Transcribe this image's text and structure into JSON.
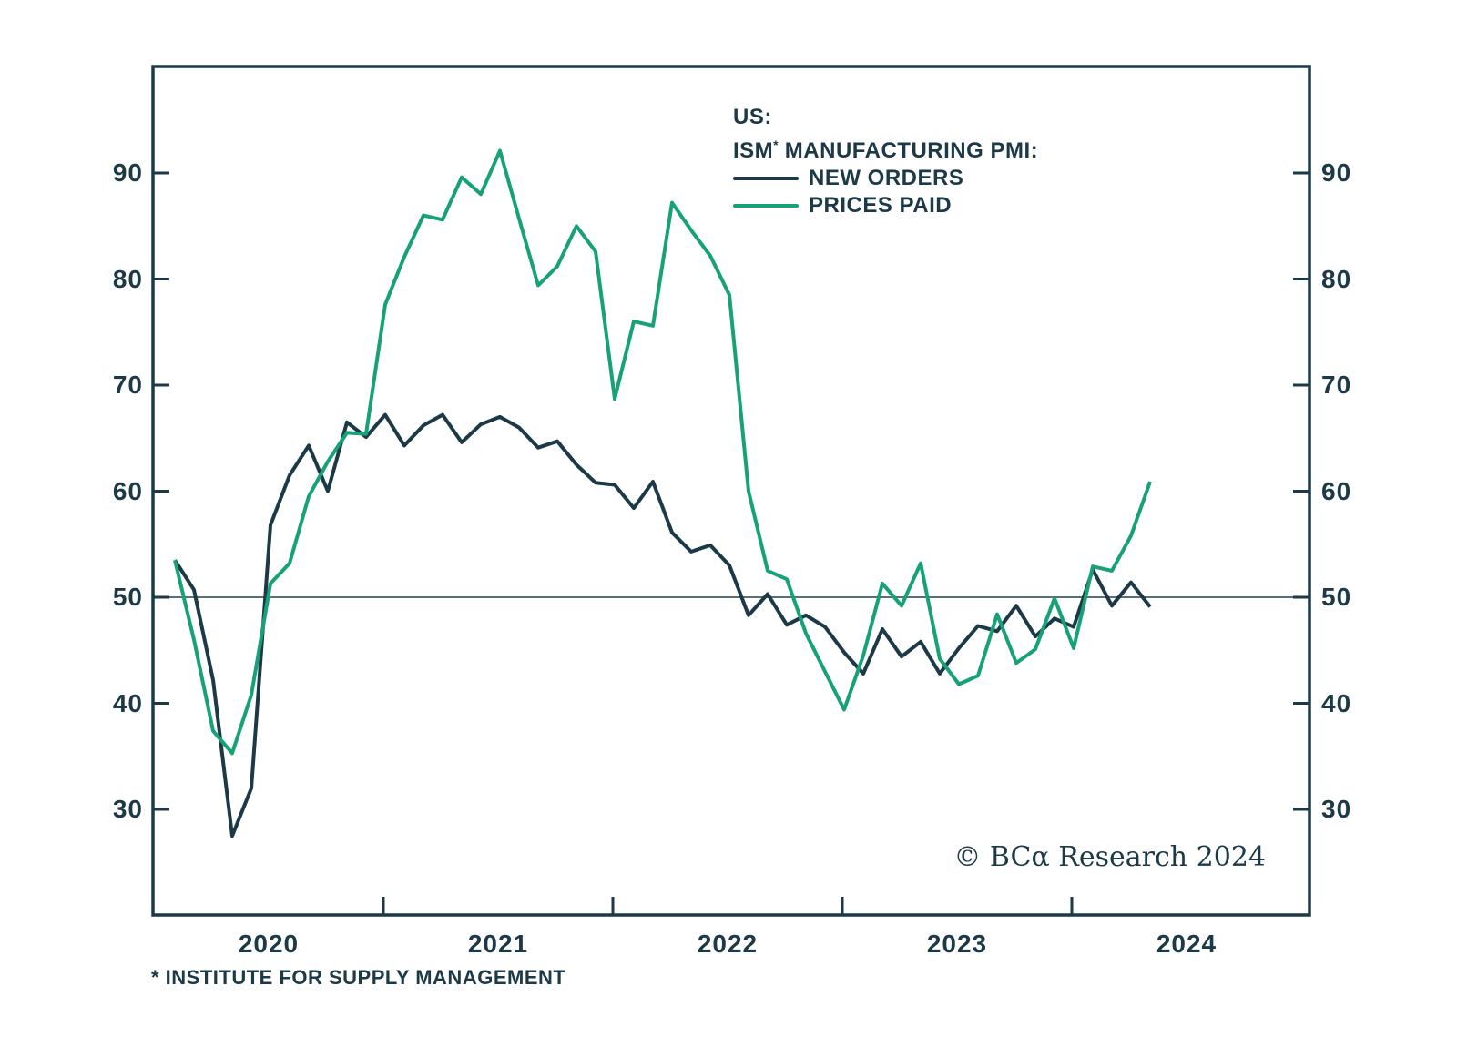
{
  "palette": {
    "ink": "#1b3947",
    "green": "#16a276",
    "ref_line": "#5a6e78",
    "background": "#ffffff"
  },
  "legend": {
    "region_label": "US:",
    "index_label_prefix": "ISM",
    "index_label_star": "*",
    "index_label_suffix": " MANUFACTURING PMI:"
  },
  "footnote": "* INSTITUTE FOR SUPPLY MANAGEMENT",
  "copyright": "© BCα Research 2024",
  "chart_data": {
    "type": "line",
    "title": "US: ISM* MANUFACTURING PMI",
    "x_frequency": "monthly",
    "x_start": "2020-01",
    "x_end": "2024-04",
    "x_year_labels": [
      "2020",
      "2021",
      "2022",
      "2023",
      "2024"
    ],
    "y_ticks": [
      90,
      80,
      70,
      60,
      50,
      40,
      30
    ],
    "ylim": [
      20,
      100
    ],
    "reference_line": 50,
    "grid": "off",
    "legend_position": "top-right-inside",
    "series": [
      {
        "name": "NEW ORDERS",
        "color": "#1b3947",
        "values": [
          53.5,
          50.7,
          42.2,
          27.5,
          32.0,
          56.8,
          61.5,
          64.3,
          60.0,
          66.5,
          65.1,
          67.2,
          64.3,
          66.2,
          67.2,
          64.6,
          66.3,
          67.0,
          66.0,
          64.1,
          64.7,
          62.5,
          60.8,
          60.6,
          58.4,
          60.9,
          56.1,
          54.3,
          54.9,
          53.0,
          48.3,
          50.3,
          47.4,
          48.3,
          47.2,
          44.8,
          42.8,
          47.0,
          44.4,
          45.8,
          42.8,
          45.2,
          47.3,
          46.8,
          49.2,
          46.3,
          48.0,
          47.2,
          52.6,
          49.2,
          51.4,
          49.1
        ]
      },
      {
        "name": "PRICES PAID",
        "color": "#16a276",
        "values": [
          53.5,
          46.0,
          37.4,
          35.3,
          40.8,
          51.3,
          53.2,
          59.5,
          62.8,
          65.5,
          65.4,
          77.6,
          82.1,
          86.0,
          85.6,
          89.6,
          88.0,
          92.1,
          85.7,
          79.4,
          81.2,
          85.0,
          82.6,
          68.7,
          76.0,
          75.6,
          87.2,
          84.6,
          82.2,
          78.5,
          60.0,
          52.5,
          51.7,
          46.6,
          43.0,
          39.4,
          44.5,
          51.3,
          49.2,
          53.2,
          44.2,
          41.8,
          42.6,
          48.4,
          43.8,
          45.1,
          49.9,
          45.2,
          52.9,
          52.5,
          55.8,
          60.9
        ]
      }
    ]
  }
}
